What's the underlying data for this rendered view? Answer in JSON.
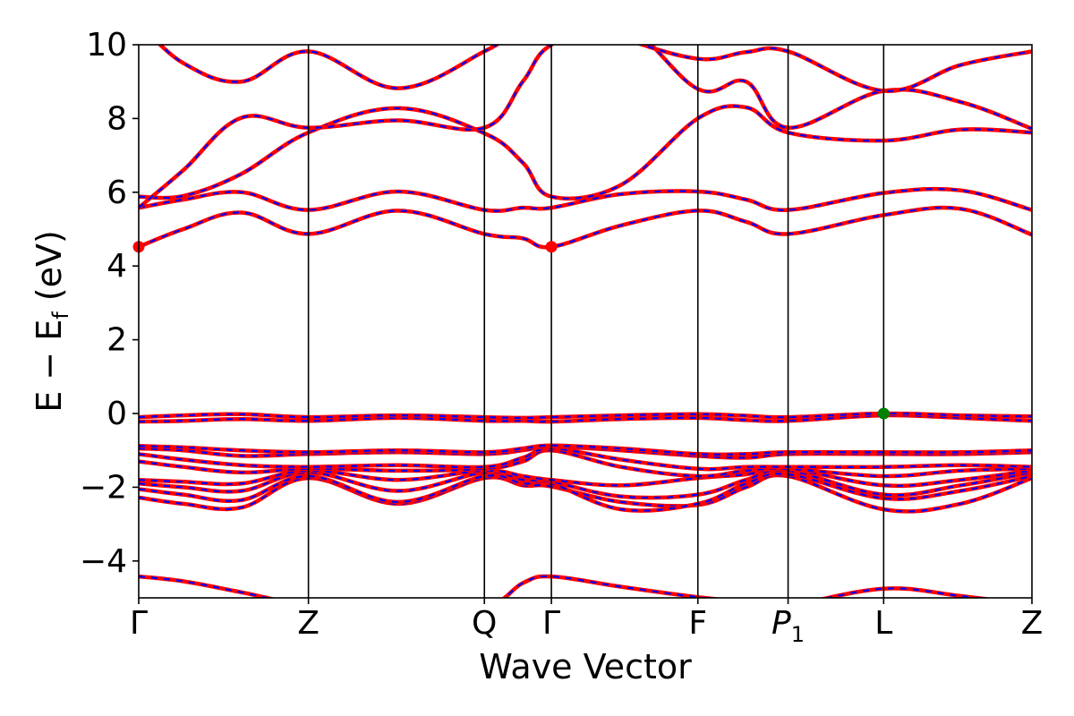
{
  "chart_data": {
    "type": "line",
    "title": "",
    "xlabel": "Wave Vector",
    "ylabel_parts": {
      "main": "E − E",
      "sub": "f",
      "unit": " (eV)"
    },
    "ylim": [
      -5,
      10
    ],
    "yticks": [
      -4,
      -2,
      0,
      2,
      4,
      6,
      8,
      10
    ],
    "ytick_labels": [
      "−4",
      "−2",
      "0",
      "2",
      "4",
      "6",
      "8",
      "10"
    ],
    "xlim": [
      0,
      1
    ],
    "kpoints": [
      {
        "label": "Γ",
        "x": 0.0
      },
      {
        "label": "Z",
        "x": 0.19
      },
      {
        "label": "Q",
        "x": 0.387
      },
      {
        "label": "Γ",
        "x": 0.462
      },
      {
        "label": "F",
        "x": 0.626
      },
      {
        "label": "P",
        "sub": "1",
        "italic": true,
        "x": 0.727
      },
      {
        "label": "L",
        "x": 0.834
      },
      {
        "label": "Z",
        "x": 1.0
      }
    ],
    "colors": {
      "reference": "#ff0000",
      "overlay": "#0000ff",
      "cbm_marker": "#ff0000",
      "vbm_marker": "#008000",
      "frame": "#000000"
    },
    "grid": false,
    "markers": [
      {
        "name": "cbm",
        "x": 0.0,
        "y": 4.52,
        "color": "#ff0000"
      },
      {
        "name": "cbm",
        "x": 0.462,
        "y": 4.52,
        "color": "#ff0000"
      },
      {
        "name": "vbm",
        "x": 0.834,
        "y": 0.0,
        "color": "#008000"
      }
    ],
    "bands": [
      {
        "x": [
          0,
          0.05,
          0.115,
          0.19,
          0.29,
          0.387,
          0.43,
          0.462,
          0.54,
          0.626,
          0.68,
          0.727,
          0.834,
          0.92,
          1.0
        ],
        "y": [
          -4.42,
          -4.55,
          -4.85,
          -5.2,
          -5.3,
          -5.25,
          -4.6,
          -4.42,
          -4.7,
          -4.98,
          -5.1,
          -5.2,
          -4.75,
          -4.95,
          -5.2
        ]
      },
      {
        "x": [
          0,
          0.05,
          0.115,
          0.19,
          0.29,
          0.387,
          0.43,
          0.462,
          0.54,
          0.626,
          0.68,
          0.727,
          0.834,
          0.92,
          1.0
        ],
        "y": [
          -2.28,
          -2.45,
          -2.55,
          -1.75,
          -2.45,
          -1.75,
          -1.95,
          -1.98,
          -2.4,
          -2.48,
          -2.0,
          -1.7,
          -2.6,
          -2.45,
          -1.75
        ]
      },
      {
        "x": [
          0,
          0.05,
          0.115,
          0.19,
          0.29,
          0.387,
          0.43,
          0.462,
          0.54,
          0.626,
          0.68,
          0.727,
          0.834,
          0.92,
          1.0
        ],
        "y": [
          -2.05,
          -2.2,
          -2.35,
          -1.7,
          -2.4,
          -1.7,
          -1.9,
          -1.9,
          -2.6,
          -2.45,
          -1.9,
          -1.65,
          -2.3,
          -2.1,
          -1.7
        ]
      },
      {
        "x": [
          0,
          0.05,
          0.115,
          0.19,
          0.29,
          0.387,
          0.43,
          0.462,
          0.54,
          0.626,
          0.68,
          0.727,
          0.834,
          0.92,
          1.0
        ],
        "y": [
          -1.9,
          -2.0,
          -2.1,
          -1.6,
          -2.1,
          -1.6,
          -1.8,
          -1.85,
          -2.25,
          -2.2,
          -1.8,
          -1.55,
          -2.2,
          -1.95,
          -1.6
        ]
      },
      {
        "x": [
          0,
          0.05,
          0.115,
          0.19,
          0.29,
          0.387,
          0.43,
          0.462,
          0.54,
          0.626,
          0.68,
          0.727,
          0.834,
          0.92,
          1.0
        ],
        "y": [
          -1.8,
          -1.85,
          -1.9,
          -1.55,
          -1.8,
          -1.55,
          -1.7,
          -1.8,
          -1.95,
          -1.75,
          -1.65,
          -1.5,
          -1.95,
          -1.8,
          -1.55
        ]
      },
      {
        "x": [
          0,
          0.05,
          0.115,
          0.19,
          0.29,
          0.387,
          0.43,
          0.462,
          0.54,
          0.626,
          0.68,
          0.727,
          0.834,
          0.92,
          1.0
        ],
        "y": [
          -1.3,
          -1.45,
          -1.6,
          -1.5,
          -1.55,
          -1.5,
          -1.3,
          -1.0,
          -1.45,
          -1.7,
          -1.55,
          -1.5,
          -1.7,
          -1.55,
          -1.5
        ]
      },
      {
        "x": [
          0,
          0.05,
          0.115,
          0.19,
          0.29,
          0.387,
          0.43,
          0.462,
          0.54,
          0.626,
          0.68,
          0.727,
          0.834,
          0.92,
          1.0
        ],
        "y": [
          -1.1,
          -1.25,
          -1.4,
          -1.45,
          -1.4,
          -1.45,
          -1.2,
          -0.95,
          -1.25,
          -1.5,
          -1.45,
          -1.45,
          -1.45,
          -1.4,
          -1.45
        ]
      },
      {
        "x": [
          0,
          0.05,
          0.115,
          0.19,
          0.29,
          0.387,
          0.43,
          0.462,
          0.54,
          0.626,
          0.68,
          0.727,
          0.834,
          0.92,
          1.0
        ],
        "y": [
          -0.95,
          -1.0,
          -1.15,
          -1.1,
          -1.05,
          -1.1,
          -1.0,
          -0.9,
          -1.0,
          -1.15,
          -1.2,
          -1.1,
          -1.1,
          -1.1,
          -1.05
        ]
      },
      {
        "x": [
          0,
          0.05,
          0.115,
          0.19,
          0.29,
          0.387,
          0.43,
          0.462,
          0.54,
          0.626,
          0.68,
          0.727,
          0.834,
          0.92,
          1.0
        ],
        "y": [
          -0.88,
          -0.92,
          -1.0,
          -1.05,
          -1.0,
          -1.05,
          -0.95,
          -0.87,
          -0.95,
          -1.1,
          -1.1,
          -1.05,
          -1.05,
          -1.05,
          -1.0
        ]
      },
      {
        "x": [
          0,
          0.05,
          0.115,
          0.19,
          0.29,
          0.387,
          0.43,
          0.462,
          0.54,
          0.626,
          0.68,
          0.727,
          0.834,
          0.92,
          1.0
        ],
        "y": [
          -0.22,
          -0.2,
          -0.15,
          -0.2,
          -0.12,
          -0.2,
          -0.2,
          -0.22,
          -0.15,
          -0.12,
          -0.18,
          -0.2,
          -0.05,
          -0.12,
          -0.2
        ]
      },
      {
        "x": [
          0,
          0.05,
          0.115,
          0.19,
          0.29,
          0.387,
          0.43,
          0.462,
          0.54,
          0.626,
          0.68,
          0.727,
          0.834,
          0.92,
          1.0
        ],
        "y": [
          -0.1,
          -0.05,
          -0.02,
          -0.1,
          -0.05,
          -0.1,
          -0.12,
          -0.1,
          -0.05,
          -0.02,
          -0.06,
          -0.1,
          0.0,
          -0.05,
          -0.08
        ]
      },
      {
        "x": [
          0,
          0.05,
          0.115,
          0.19,
          0.29,
          0.387,
          0.43,
          0.462,
          0.54,
          0.626,
          0.68,
          0.727,
          0.834,
          0.92,
          1.0
        ],
        "y": [
          4.52,
          5.0,
          5.45,
          4.87,
          5.5,
          4.87,
          4.75,
          4.52,
          5.1,
          5.5,
          5.2,
          4.87,
          5.38,
          5.55,
          4.85
        ]
      },
      {
        "x": [
          0,
          0.05,
          0.115,
          0.19,
          0.29,
          0.387,
          0.43,
          0.462,
          0.54,
          0.626,
          0.68,
          0.727,
          0.834,
          0.92,
          1.0
        ],
        "y": [
          5.58,
          5.8,
          6.0,
          5.52,
          6.02,
          5.52,
          5.58,
          5.58,
          5.95,
          6.02,
          5.8,
          5.52,
          5.98,
          6.05,
          5.52
        ]
      },
      {
        "x": [
          0,
          0.05,
          0.115,
          0.19,
          0.29,
          0.387,
          0.43,
          0.462,
          0.54,
          0.626,
          0.68,
          0.727,
          0.834,
          0.92,
          1.0
        ],
        "y": [
          5.88,
          5.9,
          6.5,
          7.62,
          8.28,
          7.6,
          6.8,
          5.88,
          6.2,
          8.0,
          8.3,
          7.62,
          7.4,
          7.7,
          7.62
        ]
      },
      {
        "x": [
          0,
          0.05,
          0.115,
          0.19,
          0.29,
          0.387,
          0.43,
          0.462,
          0.54,
          0.626,
          0.68,
          0.727,
          0.834,
          0.92,
          1.0
        ],
        "y": [
          5.58,
          6.6,
          8.02,
          7.75,
          7.95,
          7.75,
          9.0,
          10.0,
          10.6,
          8.8,
          9.0,
          7.75,
          8.75,
          8.45,
          7.72
        ]
      },
      {
        "x": [
          0,
          0.05,
          0.115,
          0.19,
          0.29,
          0.387,
          0.43,
          0.462,
          0.54,
          0.626,
          0.68,
          0.727,
          0.834,
          0.92,
          1.0
        ],
        "y": [
          10.6,
          9.5,
          9.0,
          9.82,
          8.82,
          9.82,
          10.5,
          11.0,
          10.2,
          9.62,
          9.8,
          9.82,
          8.75,
          9.45,
          9.82
        ]
      }
    ]
  }
}
